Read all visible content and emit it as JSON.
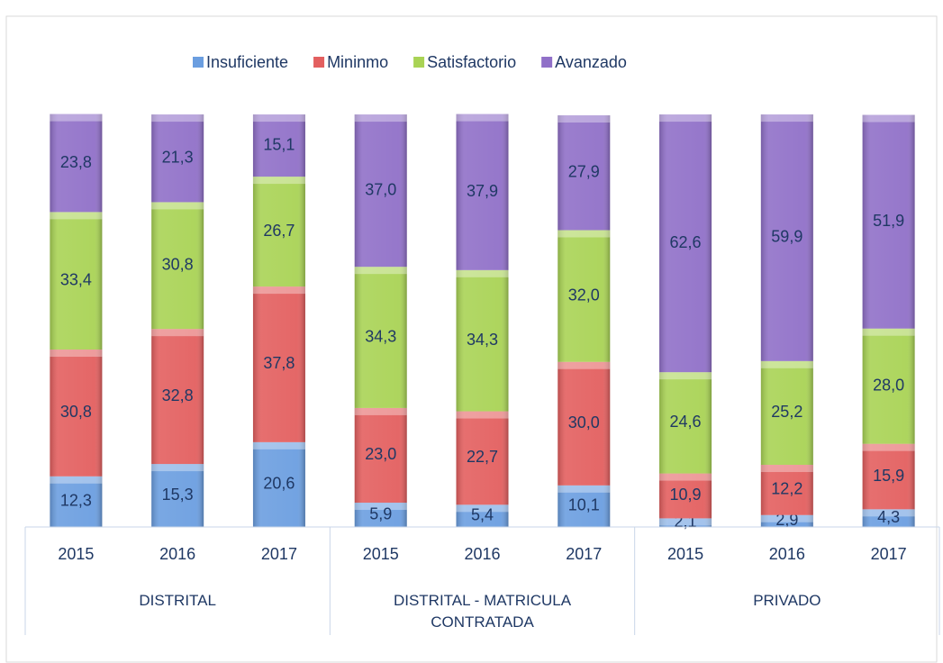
{
  "chart_data": {
    "type": "stacked_bar",
    "categories": [
      "2015",
      "2016",
      "2017",
      "2015",
      "2016",
      "2017",
      "2015",
      "2016",
      "2017"
    ],
    "groups": [
      "DISTRITAL",
      "DISTRITAL - MATRICULA CONTRATADA",
      "PRIVADO"
    ],
    "ylim": [
      0,
      100
    ],
    "legend": "top",
    "series": [
      {
        "name": "Insuficiente",
        "color": "#6b9ee0",
        "values": [
          12.3,
          15.3,
          20.6,
          5.9,
          5.4,
          10.1,
          2.1,
          2.9,
          4.3
        ],
        "value_labels": [
          "12,3",
          "15,3",
          "20,6",
          "5,9",
          "5,4",
          "10,1",
          "2,1",
          "2,9",
          "4,3"
        ]
      },
      {
        "name": "Mininmo",
        "color": "#e35f5f",
        "values": [
          30.8,
          32.8,
          37.8,
          23.0,
          22.7,
          30.0,
          10.9,
          12.2,
          15.9
        ],
        "value_labels": [
          "30,8",
          "32,8",
          "37,8",
          "23,0",
          "22,7",
          "30,0",
          "10,9",
          "12,2",
          "15,9"
        ]
      },
      {
        "name": "Satisfactorio",
        "color": "#a9d355",
        "values": [
          33.4,
          30.8,
          26.7,
          34.3,
          34.3,
          32.0,
          24.6,
          25.2,
          28.0
        ],
        "value_labels": [
          "33,4",
          "30,8",
          "26,7",
          "34,3",
          "34,3",
          "32,0",
          "24,6",
          "25,2",
          "28,0"
        ]
      },
      {
        "name": "Avanzado",
        "color": "#9070c8",
        "values": [
          23.8,
          21.3,
          15.1,
          37.0,
          37.9,
          27.9,
          62.6,
          59.9,
          51.9
        ],
        "value_labels": [
          "23,8",
          "21,3",
          "15,1",
          "37,0",
          "37,9",
          "27,9",
          "62,6",
          "59,9",
          "51,9"
        ]
      }
    ]
  }
}
